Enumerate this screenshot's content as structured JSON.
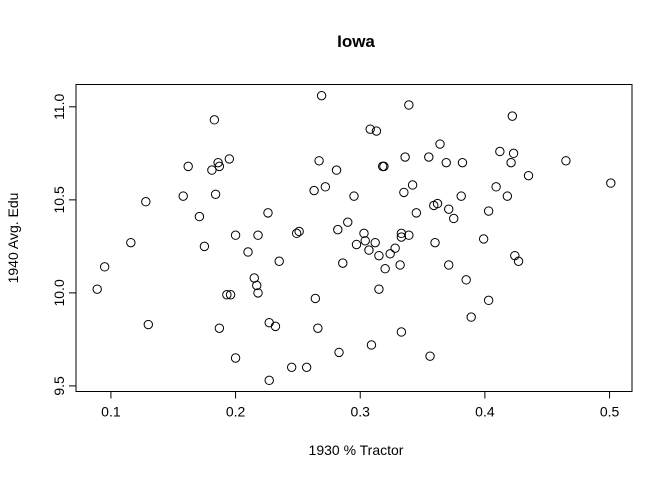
{
  "chart_data": {
    "type": "scatter",
    "title": "Iowa",
    "xlabel": "1930 % Tractor",
    "ylabel": "1940 Avg. Edu",
    "xlim": [
      0.072,
      0.518
    ],
    "ylim": [
      9.47,
      11.12
    ],
    "xticks": [
      0.1,
      0.2,
      0.3,
      0.4,
      0.5
    ],
    "yticks": [
      9.5,
      10.0,
      10.5,
      11.0
    ],
    "xtick_labels": [
      "0.1",
      "0.2",
      "0.3",
      "0.4",
      "0.5"
    ],
    "ytick_labels": [
      "9.5",
      "10.0",
      "10.5",
      "11.0"
    ],
    "grid": false,
    "legend": "none",
    "marker": "open-circle",
    "points": [
      [
        0.089,
        10.02
      ],
      [
        0.095,
        10.14
      ],
      [
        0.116,
        10.27
      ],
      [
        0.128,
        10.49
      ],
      [
        0.13,
        9.83
      ],
      [
        0.158,
        10.52
      ],
      [
        0.162,
        10.68
      ],
      [
        0.171,
        10.41
      ],
      [
        0.175,
        10.25
      ],
      [
        0.181,
        10.66
      ],
      [
        0.183,
        10.93
      ],
      [
        0.184,
        10.53
      ],
      [
        0.186,
        10.7
      ],
      [
        0.187,
        10.68
      ],
      [
        0.187,
        9.81
      ],
      [
        0.193,
        9.99
      ],
      [
        0.195,
        10.72
      ],
      [
        0.196,
        9.99
      ],
      [
        0.2,
        10.31
      ],
      [
        0.2,
        9.65
      ],
      [
        0.21,
        10.22
      ],
      [
        0.215,
        10.08
      ],
      [
        0.217,
        10.04
      ],
      [
        0.218,
        10.31
      ],
      [
        0.218,
        10.0
      ],
      [
        0.226,
        10.43
      ],
      [
        0.227,
        9.84
      ],
      [
        0.227,
        9.53
      ],
      [
        0.232,
        9.82
      ],
      [
        0.235,
        10.17
      ],
      [
        0.245,
        9.6
      ],
      [
        0.249,
        10.32
      ],
      [
        0.251,
        10.33
      ],
      [
        0.257,
        9.6
      ],
      [
        0.263,
        10.55
      ],
      [
        0.264,
        9.97
      ],
      [
        0.266,
        9.81
      ],
      [
        0.267,
        10.71
      ],
      [
        0.269,
        11.06
      ],
      [
        0.272,
        10.57
      ],
      [
        0.281,
        10.66
      ],
      [
        0.282,
        10.34
      ],
      [
        0.283,
        9.68
      ],
      [
        0.286,
        10.16
      ],
      [
        0.29,
        10.38
      ],
      [
        0.295,
        10.52
      ],
      [
        0.297,
        10.26
      ],
      [
        0.303,
        10.32
      ],
      [
        0.304,
        10.28
      ],
      [
        0.307,
        10.23
      ],
      [
        0.308,
        10.88
      ],
      [
        0.309,
        9.72
      ],
      [
        0.312,
        10.27
      ],
      [
        0.313,
        10.87
      ],
      [
        0.315,
        10.2
      ],
      [
        0.315,
        10.02
      ],
      [
        0.318,
        10.68
      ],
      [
        0.319,
        10.68
      ],
      [
        0.32,
        10.13
      ],
      [
        0.324,
        10.21
      ],
      [
        0.328,
        10.24
      ],
      [
        0.332,
        10.15
      ],
      [
        0.333,
        10.3
      ],
      [
        0.333,
        10.32
      ],
      [
        0.333,
        9.79
      ],
      [
        0.335,
        10.54
      ],
      [
        0.336,
        10.73
      ],
      [
        0.339,
        10.31
      ],
      [
        0.339,
        11.01
      ],
      [
        0.342,
        10.58
      ],
      [
        0.345,
        10.43
      ],
      [
        0.355,
        10.73
      ],
      [
        0.356,
        9.66
      ],
      [
        0.359,
        10.47
      ],
      [
        0.36,
        10.27
      ],
      [
        0.362,
        10.48
      ],
      [
        0.364,
        10.8
      ],
      [
        0.369,
        10.7
      ],
      [
        0.371,
        10.45
      ],
      [
        0.371,
        10.15
      ],
      [
        0.375,
        10.4
      ],
      [
        0.381,
        10.52
      ],
      [
        0.382,
        10.7
      ],
      [
        0.385,
        10.07
      ],
      [
        0.389,
        9.87
      ],
      [
        0.399,
        10.29
      ],
      [
        0.403,
        10.44
      ],
      [
        0.403,
        9.96
      ],
      [
        0.409,
        10.57
      ],
      [
        0.412,
        10.76
      ],
      [
        0.418,
        10.52
      ],
      [
        0.421,
        10.7
      ],
      [
        0.422,
        10.95
      ],
      [
        0.423,
        10.75
      ],
      [
        0.424,
        10.2
      ],
      [
        0.427,
        10.17
      ],
      [
        0.435,
        10.63
      ],
      [
        0.465,
        10.71
      ],
      [
        0.501,
        10.59
      ]
    ]
  }
}
